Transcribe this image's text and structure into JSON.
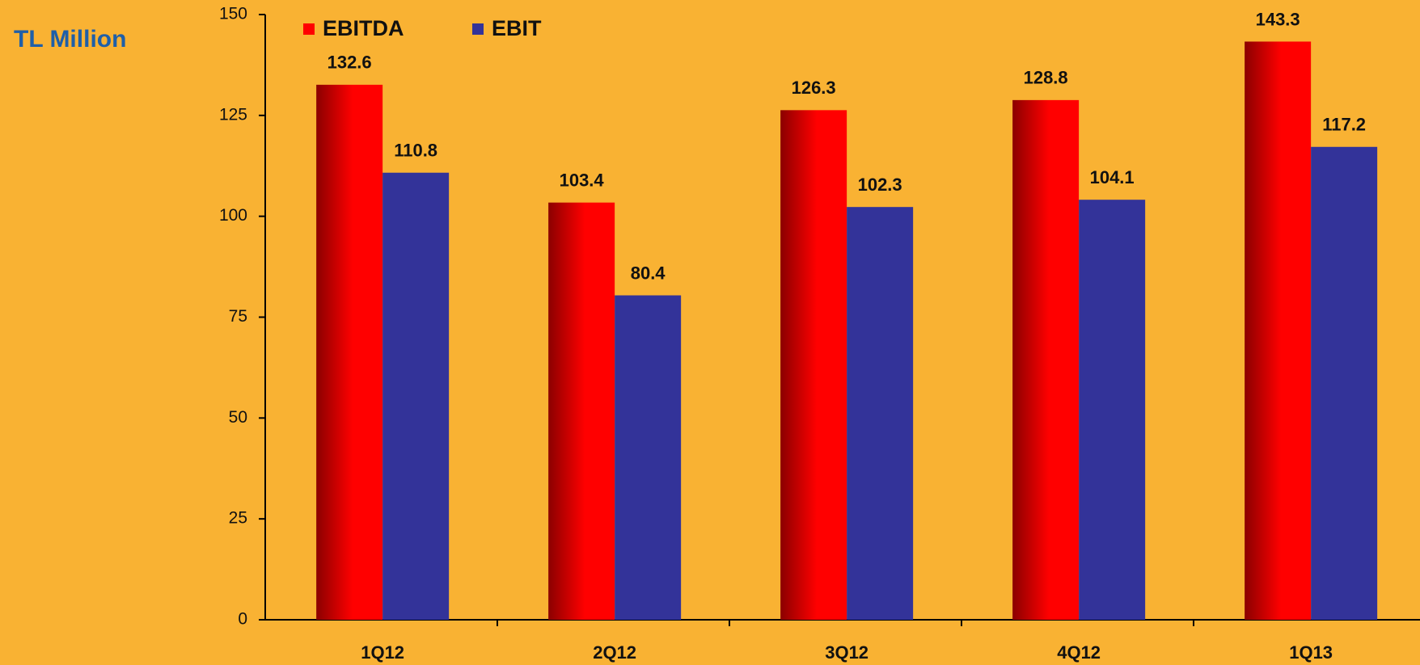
{
  "chart_data": {
    "type": "bar",
    "title": "TL Million",
    "categories": [
      "1Q12",
      "2Q12",
      "3Q12",
      "4Q12",
      "1Q13"
    ],
    "series": [
      {
        "name": "EBITDA",
        "color": "#ff0000",
        "values": [
          132.6,
          103.4,
          126.3,
          128.8,
          143.3
        ]
      },
      {
        "name": "EBIT",
        "color": "#333399",
        "values": [
          110.8,
          80.4,
          102.3,
          104.1,
          117.2
        ]
      }
    ],
    "ylim": [
      0,
      150
    ],
    "yticks": [
      0,
      25,
      50,
      75,
      100,
      125,
      150
    ],
    "grid": false,
    "legend": "top"
  }
}
